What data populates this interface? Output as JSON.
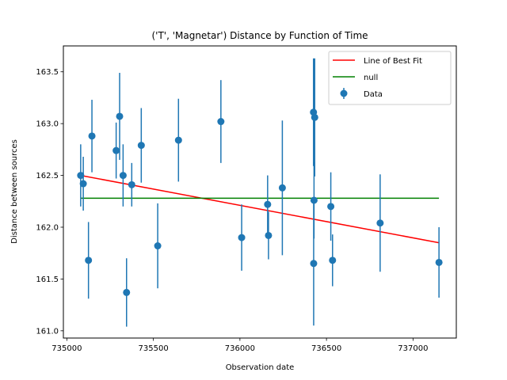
{
  "chart_data": {
    "type": "scatter",
    "title": "('T', 'Magnetar') Distance by Function of Time",
    "xlabel": "Observation date",
    "ylabel": "Distance between sources",
    "xlim": [
      734980,
      737250
    ],
    "ylim": [
      160.93,
      163.75
    ],
    "xticks": [
      735000,
      735500,
      736000,
      736500,
      737000
    ],
    "xtick_labels": [
      "735000",
      "735500",
      "736000",
      "736500",
      "737000"
    ],
    "yticks": [
      161.0,
      161.5,
      162.0,
      162.5,
      163.0,
      163.5
    ],
    "ytick_labels": [
      "161.0",
      "161.5",
      "162.0",
      "162.5",
      "163.0",
      "163.5"
    ],
    "legend_position": "top-right",
    "legend": [
      {
        "label": "Line of Best Fit",
        "kind": "line",
        "color": "#ff0000"
      },
      {
        "label": "null",
        "kind": "line",
        "color": "#008000"
      },
      {
        "label": "Data",
        "kind": "errorbar",
        "color": "#1f77b4"
      }
    ],
    "series": [
      {
        "name": "Data",
        "kind": "errorbar",
        "color": "#1f77b4",
        "points": [
          {
            "x": 735080,
            "y": 162.5,
            "err": 0.3
          },
          {
            "x": 735095,
            "y": 162.42,
            "err": 0.26
          },
          {
            "x": 735125,
            "y": 161.68,
            "err": 0.37
          },
          {
            "x": 735145,
            "y": 162.88,
            "err": 0.35
          },
          {
            "x": 735285,
            "y": 162.74,
            "err": 0.27
          },
          {
            "x": 735305,
            "y": 163.07,
            "err": 0.42
          },
          {
            "x": 735325,
            "y": 162.5,
            "err": 0.3
          },
          {
            "x": 735345,
            "y": 161.37,
            "err": 0.33
          },
          {
            "x": 735375,
            "y": 162.41,
            "err": 0.21
          },
          {
            "x": 735430,
            "y": 162.79,
            "err": 0.36
          },
          {
            "x": 735525,
            "y": 161.82,
            "err": 0.41
          },
          {
            "x": 735645,
            "y": 162.84,
            "err": 0.4
          },
          {
            "x": 735890,
            "y": 163.02,
            "err": 0.4
          },
          {
            "x": 736010,
            "y": 161.9,
            "err": 0.32
          },
          {
            "x": 736160,
            "y": 162.22,
            "err": 0.28
          },
          {
            "x": 736165,
            "y": 161.92,
            "err": 0.23
          },
          {
            "x": 736245,
            "y": 162.38,
            "err": 0.65
          },
          {
            "x": 736425,
            "y": 163.11,
            "err": 0.52
          },
          {
            "x": 736432,
            "y": 163.06,
            "err": 0.57
          },
          {
            "x": 736428,
            "y": 162.26,
            "err": 0.37
          },
          {
            "x": 736426,
            "y": 161.65,
            "err": 0.6
          },
          {
            "x": 736525,
            "y": 162.2,
            "err": 0.33
          },
          {
            "x": 736535,
            "y": 161.68,
            "err": 0.25
          },
          {
            "x": 736810,
            "y": 162.04,
            "err": 0.47
          },
          {
            "x": 737150,
            "y": 161.66,
            "err": 0.34
          }
        ]
      },
      {
        "name": "Line of Best Fit",
        "kind": "line",
        "color": "#ff0000",
        "x": [
          735080,
          737150
        ],
        "y": [
          162.5,
          161.85
        ]
      },
      {
        "name": "null",
        "kind": "line",
        "color": "#008000",
        "x": [
          735080,
          737150
        ],
        "y": [
          162.28,
          162.28
        ]
      }
    ]
  }
}
